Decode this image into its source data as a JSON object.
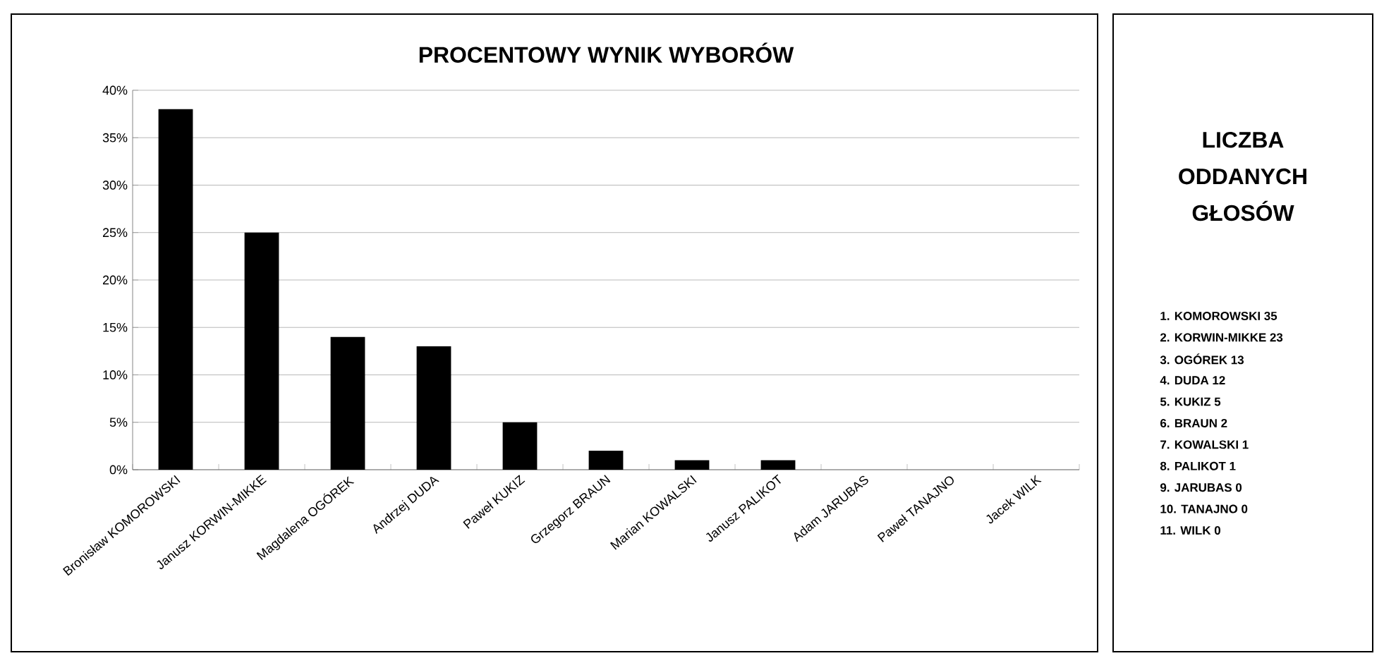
{
  "chart_data": [
    {
      "type": "bar",
      "title": "PROCENTOWY WYNIK WYBORÓW",
      "categories": [
        "Bronisław KOMOROWSKI",
        "Janusz KORWIN-MIKKE",
        "Magdalena OGÓREK",
        "Andrzej DUDA",
        "Paweł KUKIZ",
        "Grzegorz BRAUN",
        "Marian KOWALSKI",
        "Janusz PALIKOT",
        "Adam JARUBAS",
        "Paweł TANAJNO",
        "Jacek WILK"
      ],
      "values": [
        38,
        25,
        14,
        13,
        5,
        2,
        1,
        1,
        0,
        0,
        0
      ],
      "color": "#000000",
      "ylim": [
        0,
        40
      ],
      "yticks": [
        {
          "value": 0,
          "label": "0%"
        },
        {
          "value": 5,
          "label": "5%"
        },
        {
          "value": 10,
          "label": "10%"
        },
        {
          "value": 15,
          "label": "15%"
        },
        {
          "value": 20,
          "label": "20%"
        },
        {
          "value": 25,
          "label": "25%"
        },
        {
          "value": 30,
          "label": "30%"
        },
        {
          "value": 35,
          "label": "35%"
        },
        {
          "value": 40,
          "label": "40%"
        }
      ],
      "grid": "y"
    },
    {
      "type": "other",
      "title": "LICZBA ODDANYCH GŁOSÓW",
      "annotations": [
        "1. KOMOROWSKI 35",
        "2. KORWIN-MIKKE 23",
        "3. OGÓREK 13",
        "4. DUDA 12",
        "5. KUKIZ 5",
        "6. BRAUN 2",
        "7. KOWALSKI 1",
        "8. PALIKOT 1",
        "9. JARUBAS 0",
        "10. TANAJNO 0",
        "11. WILK 0"
      ]
    }
  ]
}
